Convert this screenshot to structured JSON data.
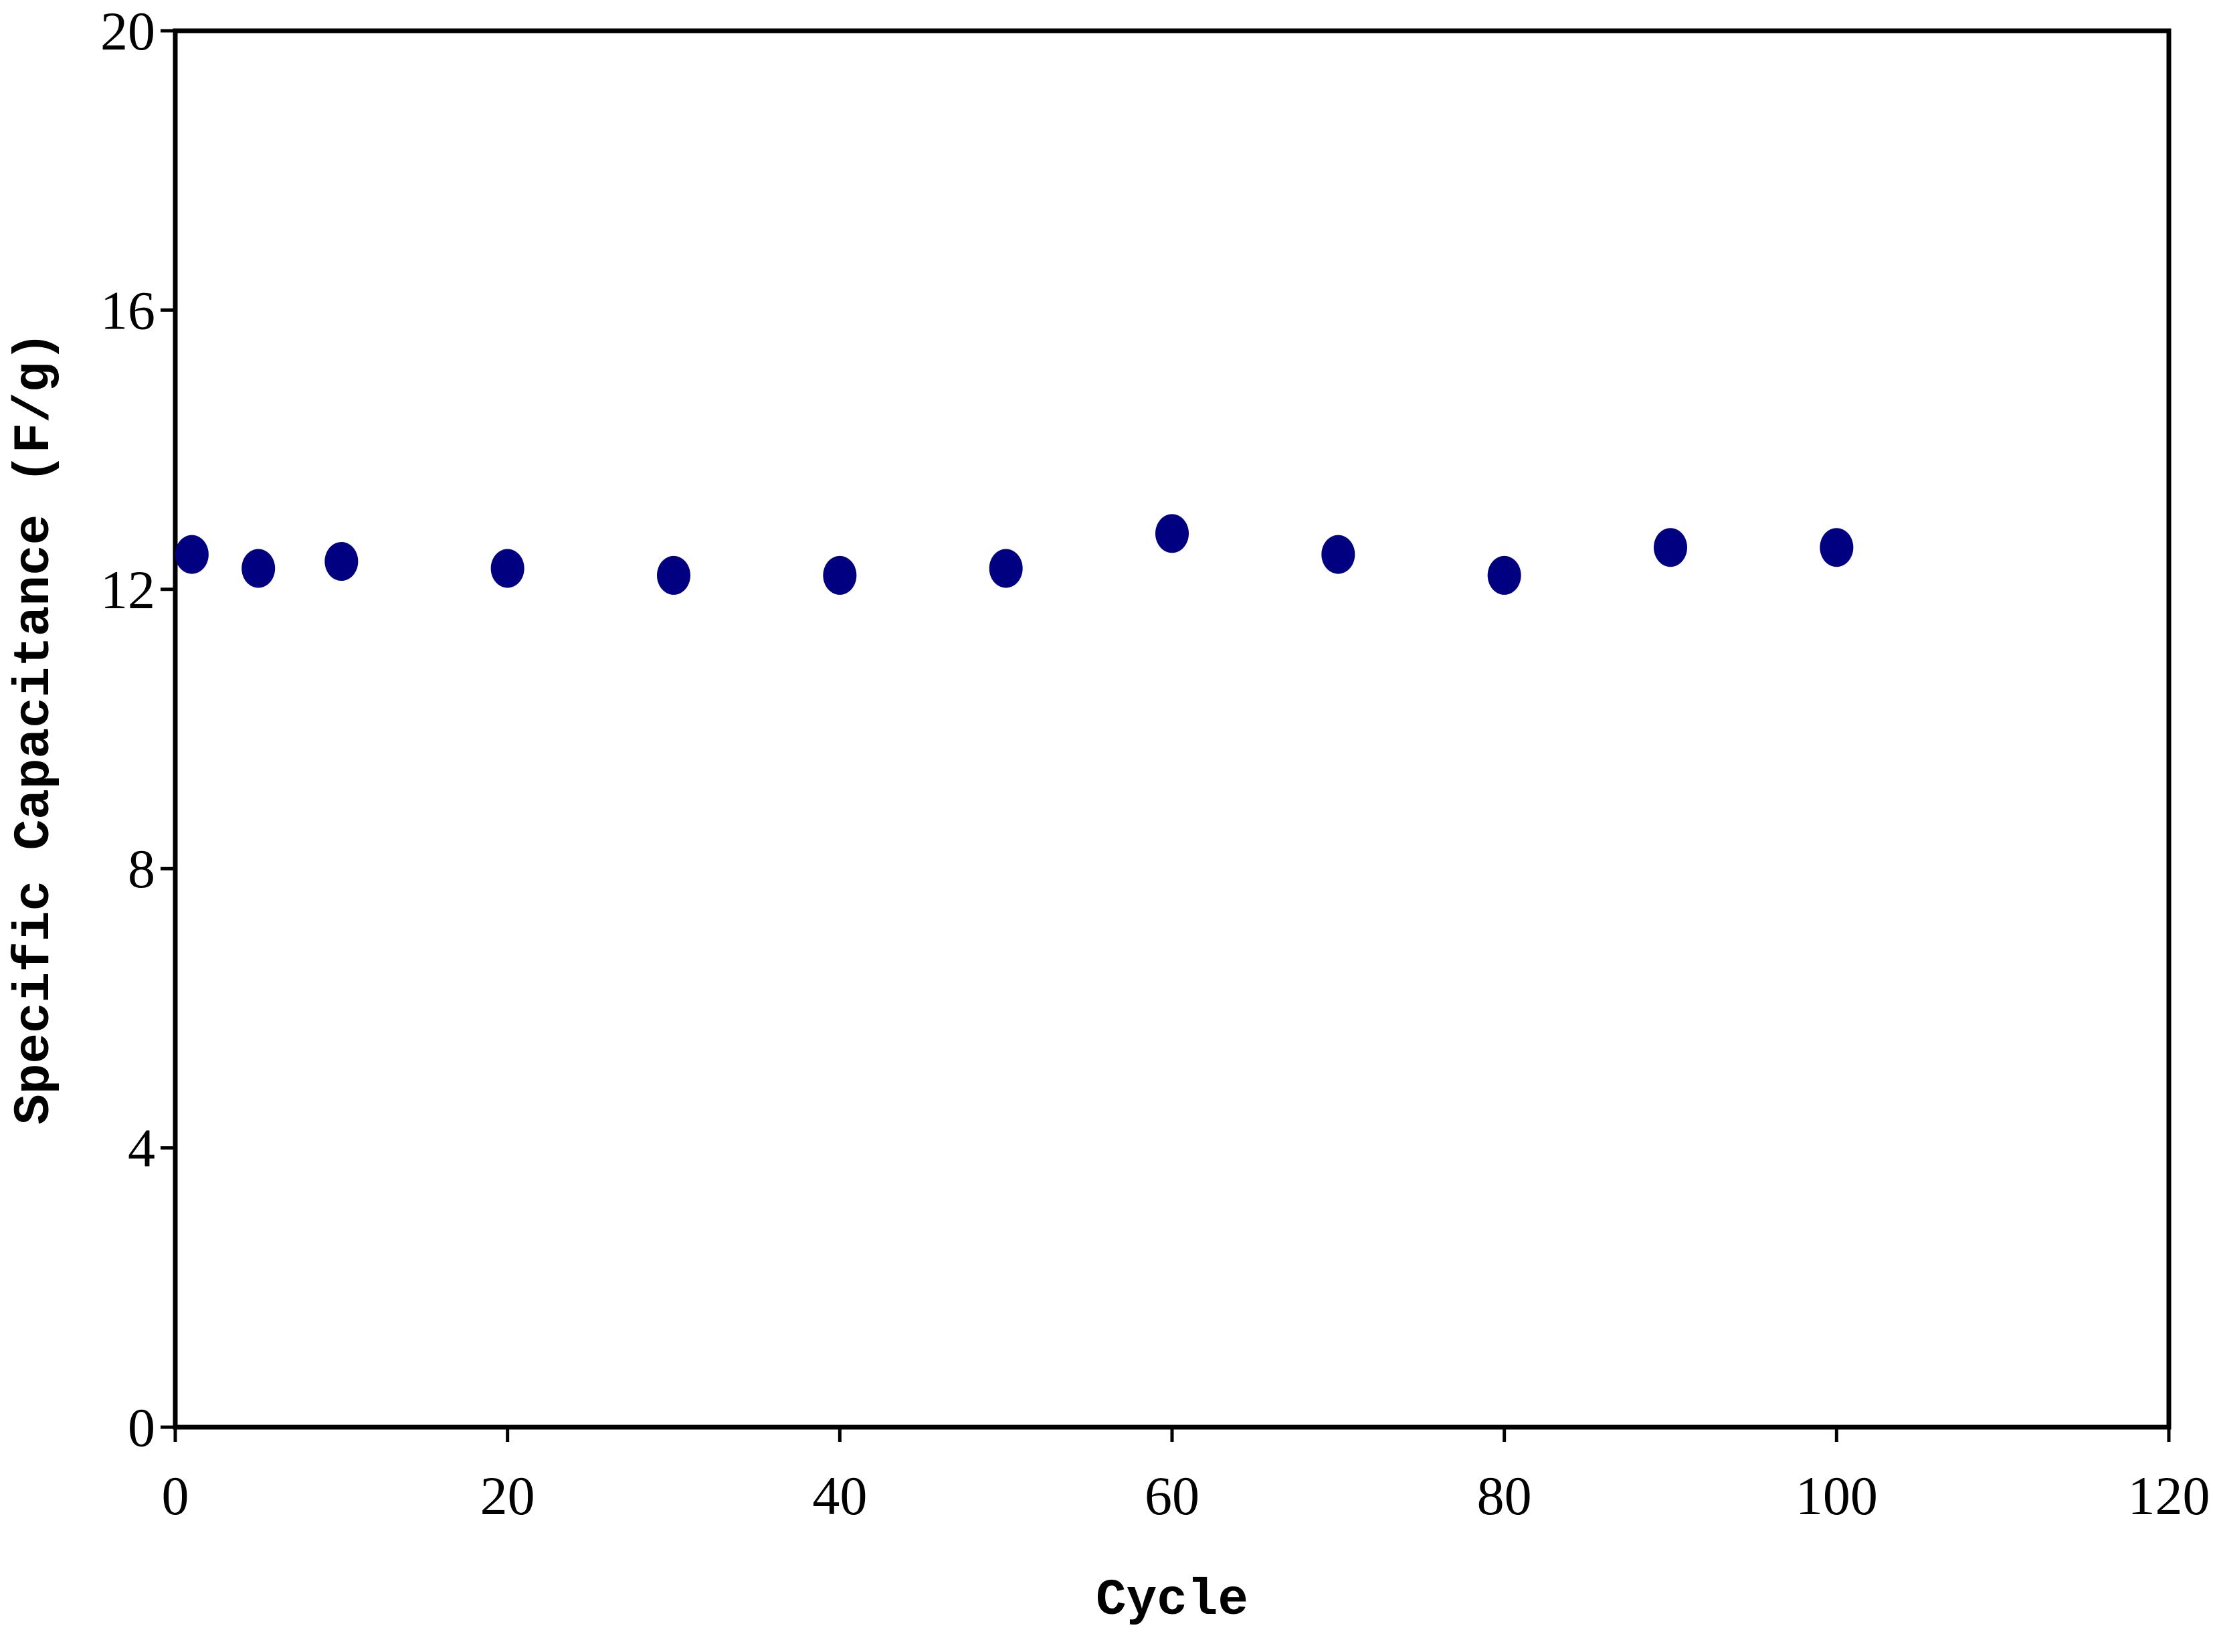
{
  "chart_data": {
    "type": "scatter",
    "x_label": "Cycle",
    "y_label": "Specific Capacitance (F/g)",
    "series": [
      {
        "color": "#000080",
        "x": [
          1,
          5,
          10,
          20,
          30,
          40,
          50,
          60,
          70,
          80,
          90,
          100
        ],
        "values": [
          12.5,
          12.3,
          12.4,
          12.3,
          12.2,
          12.2,
          12.3,
          12.8,
          12.5,
          12.2,
          12.6,
          12.6
        ]
      }
    ],
    "xlim": [
      0,
      120
    ],
    "xticks": [
      0,
      20,
      40,
      60,
      80,
      100,
      120
    ],
    "ylim": [
      0,
      20
    ],
    "yticks": [
      0,
      4,
      8,
      12,
      16,
      20
    ],
    "grid": false
  }
}
